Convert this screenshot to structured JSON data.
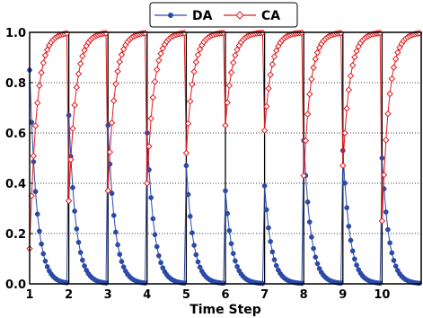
{
  "chart_data": {
    "type": "line",
    "title": "",
    "xlabel": "Time Step",
    "ylabel": "",
    "xlim": [
      1,
      11
    ],
    "ylim": [
      0.0,
      1.0
    ],
    "x_ticks": [
      "1",
      "2",
      "3",
      "4",
      "5",
      "6",
      "7",
      "8",
      "9",
      "10"
    ],
    "y_ticks": [
      "0.0",
      "0.2",
      "0.4",
      "0.6",
      "0.8",
      "1.0"
    ],
    "grid": true,
    "legend_position": "top-center",
    "points_per_step": 20,
    "series": [
      {
        "name": "DA",
        "color": "#2b4aa8",
        "marker": "circle",
        "start_values": [
          0.85,
          0.67,
          0.63,
          0.6,
          0.47,
          0.37,
          0.39,
          0.57,
          0.53,
          0.5
        ],
        "decay_rate": 0.28
      },
      {
        "name": "CA",
        "color": "#e31a1c",
        "marker": "diamond",
        "start_values": [
          0.14,
          0.33,
          0.37,
          0.4,
          0.52,
          0.63,
          0.61,
          0.43,
          0.47,
          0.25
        ],
        "recovery_rate": 0.28
      }
    ]
  }
}
